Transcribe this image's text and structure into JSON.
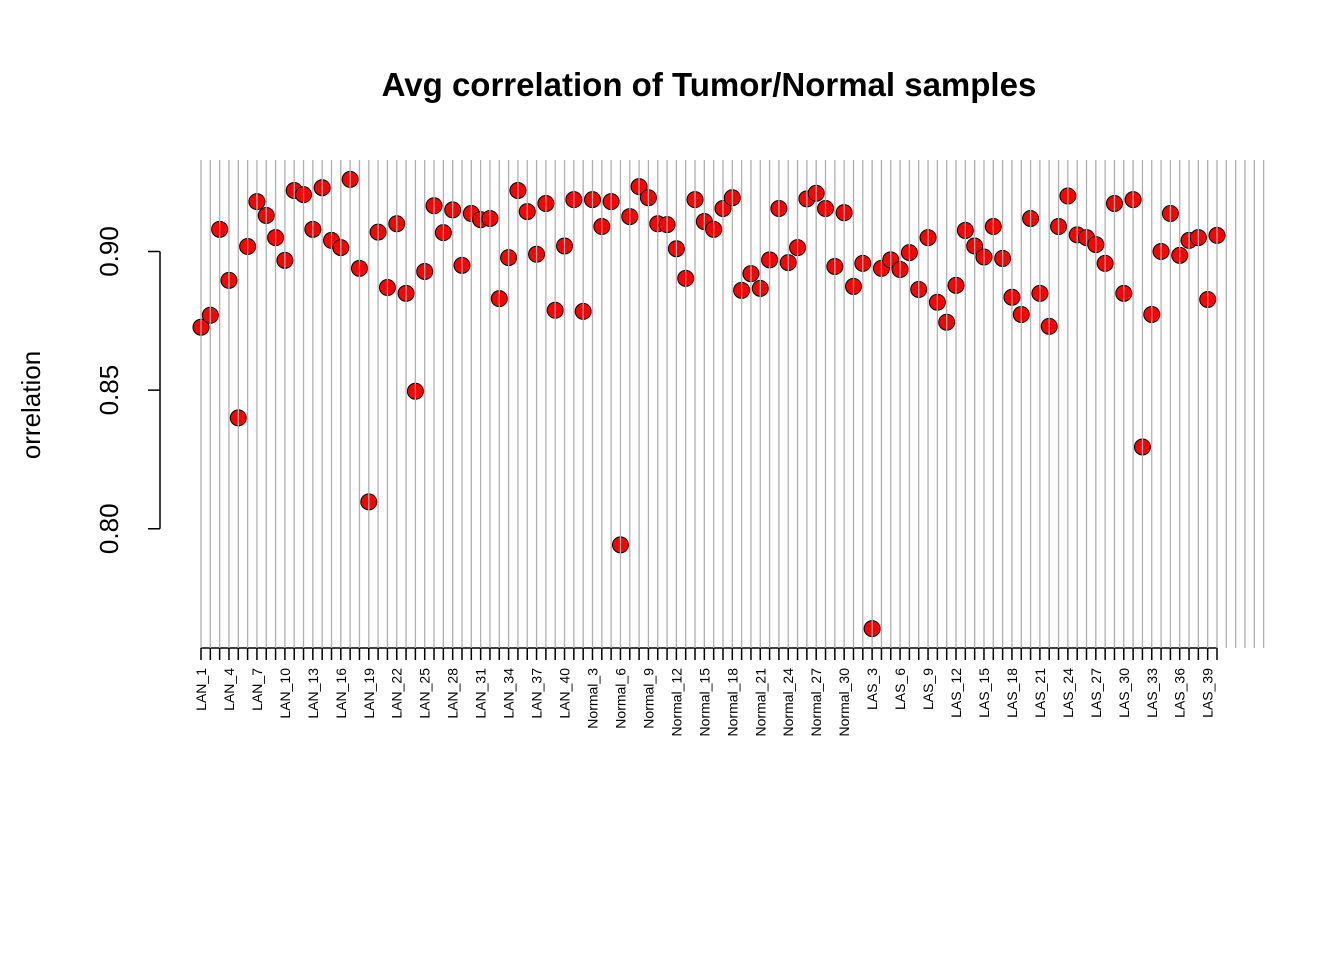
{
  "chart_data": {
    "type": "scatter",
    "title": "Avg correlation of Tumor/Normal samples",
    "y_label": "orrelation",
    "color": "#ff0000",
    "grid": true,
    "ylim": [
      0.757,
      0.933
    ],
    "yticks": [
      {
        "value": 0.8,
        "label": "0.80"
      },
      {
        "value": 0.85,
        "label": "0.85"
      },
      {
        "value": 0.9,
        "label": "0.90"
      }
    ],
    "categories": [
      "LAN_1",
      null,
      null,
      "LAN_4",
      null,
      null,
      "LAN_7",
      null,
      null,
      "LAN_10",
      null,
      null,
      "LAN_13",
      null,
      null,
      "LAN_16",
      null,
      null,
      "LAN_19",
      null,
      null,
      "LAN_22",
      null,
      null,
      "LAN_25",
      null,
      null,
      "LAN_28",
      null,
      null,
      "LAN_31",
      null,
      null,
      "LAN_34",
      null,
      null,
      "LAN_37",
      null,
      null,
      "LAN_40",
      null,
      null,
      "Normal_3",
      null,
      null,
      "Normal_6",
      null,
      null,
      "Normal_9",
      null,
      null,
      "Normal_12",
      null,
      null,
      "Normal_15",
      null,
      null,
      "Normal_18",
      null,
      null,
      "Normal_21",
      null,
      null,
      "Normal_24",
      null,
      null,
      "Normal_27",
      null,
      null,
      "Normal_30",
      null,
      null,
      "LAS_3",
      null,
      null,
      "LAS_6",
      null,
      null,
      "LAS_9",
      null,
      null,
      "LAS_12",
      null,
      null,
      "LAS_15",
      null,
      null,
      "LAS_18",
      null,
      null,
      "LAS_21",
      null,
      null,
      "LAS_24",
      null,
      null,
      "LAS_27",
      null,
      null,
      "LAS_30",
      null,
      null,
      "LAS_33",
      null,
      null,
      "LAS_36",
      null,
      null,
      "LAS_39",
      null
    ],
    "values": [
      0.8727,
      0.877,
      0.908,
      0.8896,
      0.84,
      0.9018,
      0.918,
      0.913,
      0.905,
      0.8968,
      0.922,
      0.9205,
      0.908,
      0.923,
      0.904,
      0.9014,
      0.926,
      0.8939,
      0.8097,
      0.907,
      0.887,
      0.91,
      0.8849,
      0.8496,
      0.8928,
      0.9165,
      0.9068,
      0.915,
      0.895,
      0.9137,
      0.9115,
      0.9119,
      0.883,
      0.8978,
      0.922,
      0.9144,
      0.899,
      0.9173,
      0.8788,
      0.902,
      0.9187,
      0.8784,
      0.9187,
      0.909,
      0.918,
      0.7942,
      0.9126,
      0.9234,
      0.9194,
      0.91,
      0.9097,
      0.901,
      0.8903,
      0.9187,
      0.9108,
      0.908,
      0.9155,
      0.9194,
      0.886,
      0.892,
      0.8867,
      0.897,
      0.9155,
      0.896,
      0.9014,
      0.919,
      0.921,
      0.9155,
      0.8946,
      0.914,
      0.8874,
      0.8957,
      0.764,
      0.8939,
      0.897,
      0.8935,
      0.8996,
      0.8863,
      0.905,
      0.8817,
      0.8745,
      0.8878,
      0.9076,
      0.902,
      0.898,
      0.909,
      0.8975,
      0.8835,
      0.8773,
      0.9119,
      0.8849,
      0.873,
      0.909,
      0.92,
      0.906,
      0.905,
      0.9025,
      0.8957,
      0.9173,
      0.8849,
      0.9187,
      0.8295,
      0.8773,
      0.9,
      0.9137,
      0.8986,
      0.904,
      0.905,
      0.8827,
      0.9058
    ]
  }
}
